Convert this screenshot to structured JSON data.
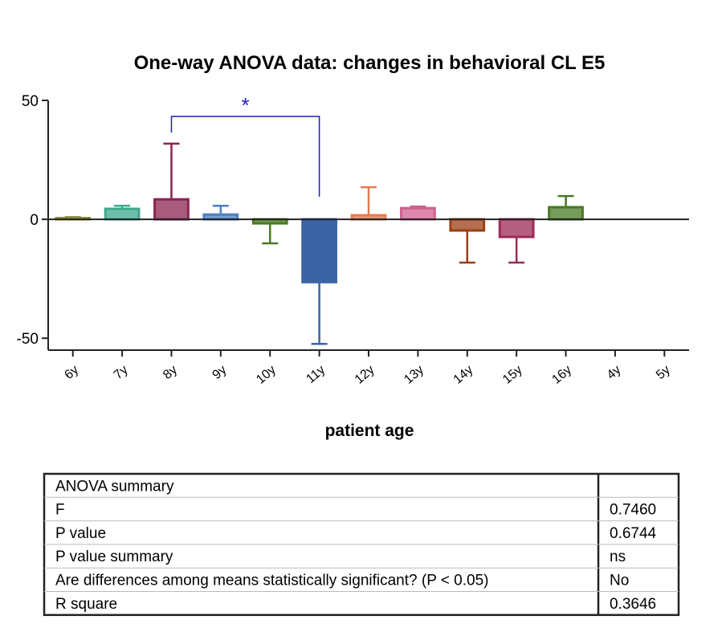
{
  "chart_data": {
    "type": "bar",
    "title": "One-way ANOVA data: changes in behavioral CL E5",
    "x_label": "patient age",
    "categories": [
      "6y",
      "7y",
      "8y",
      "9y",
      "10y",
      "11y",
      "12y",
      "13y",
      "14y",
      "15y",
      "16y",
      "4y",
      "5y"
    ],
    "values": [
      0.5,
      4.4,
      8.4,
      2,
      -1.7,
      -26.4,
      1.7,
      4.7,
      -4.7,
      -7.4,
      5.1,
      null,
      null
    ],
    "errors": [
      0.4,
      1.3,
      23.4,
      3.7,
      8.4,
      26,
      11.8,
      0.7,
      13.5,
      10.8,
      4.7,
      null,
      null
    ],
    "colors": [
      "#8a8a2e",
      "#3fa88e",
      "#8b2450",
      "#4a7fc1",
      "#4a7a24",
      "#3a64a6",
      "#e07c50",
      "#d0608e",
      "#9c3f12",
      "#9c2a56",
      "#4a7a24",
      "#333333",
      "#333333"
    ],
    "ylim": [
      -55,
      50
    ],
    "yticks": [
      -50,
      0,
      50
    ],
    "annotation": {
      "text": "*",
      "from": "8y",
      "to": "11y",
      "color": "#1f1fb0"
    }
  },
  "table": {
    "title": "ANOVA summary",
    "rows": [
      [
        "F",
        "0.7460"
      ],
      [
        "P value",
        "0.6744"
      ],
      [
        "P value summary",
        "ns"
      ],
      [
        "Are differences among means statistically significant? (P < 0.05)",
        "No"
      ],
      [
        "R square",
        "0.3646"
      ]
    ]
  }
}
